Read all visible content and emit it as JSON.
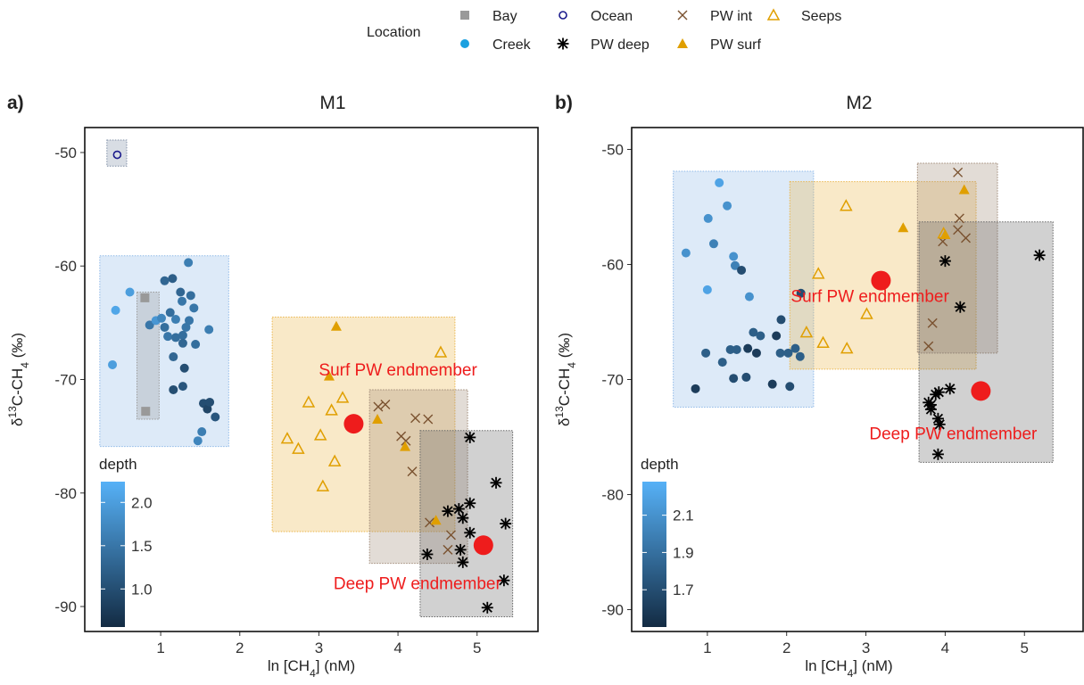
{
  "chart_data": [
    {
      "type": "scatter",
      "panel_label": "a)",
      "title": "M1",
      "legend_title": "Location",
      "x_label": [
        "ln [CH",
        "4",
        "] (nM)"
      ],
      "y_label": [
        "δ",
        "13",
        "C-CH",
        "4",
        " (‰)"
      ],
      "xlim": [
        0.04,
        5.77
      ],
      "ylim": [
        -92.2,
        -47.8
      ],
      "xticks": [
        1,
        2,
        3,
        4,
        5
      ],
      "yticks": [
        -90,
        -80,
        -70,
        -60,
        -50
      ],
      "series": [
        {
          "name": "Bay",
          "color": "#999999",
          "marker": "square",
          "x": [
            0.8,
            0.81
          ],
          "values": [
            -62.8,
            -72.8
          ]
        },
        {
          "name": "Creek",
          "color": "#1aa0e0",
          "marker": "circle",
          "x": [
            0.39,
            0.43,
            0.61,
            0.86,
            0.94,
            1.01,
            1.05,
            1.09,
            1.15,
            1.05,
            1.12,
            1.19,
            1.16,
            1.19,
            1.25,
            1.27,
            1.32,
            1.28,
            1.28,
            1.36,
            1.3,
            1.35,
            1.38,
            1.42,
            1.44,
            1.16,
            1.28,
            1.54,
            1.59,
            1.62,
            1.69,
            1.61,
            1.52,
            1.47
          ],
          "values": [
            -68.7,
            -63.9,
            -62.3,
            -65.2,
            -64.8,
            -64.6,
            -65.4,
            -66.2,
            -61.1,
            -61.3,
            -64.1,
            -64.7,
            -68.0,
            -66.3,
            -62.3,
            -63.1,
            -65.4,
            -66.1,
            -66.8,
            -64.8,
            -69.0,
            -59.7,
            -62.6,
            -63.7,
            -66.9,
            -70.9,
            -70.6,
            -72.1,
            -72.6,
            -72.0,
            -73.3,
            -65.6,
            -74.6,
            -75.4
          ],
          "depth": [
            2.0,
            2.1,
            2.0,
            1.5,
            1.9,
            1.7,
            1.4,
            1.5,
            1.2,
            1.3,
            1.4,
            1.6,
            1.3,
            1.4,
            1.3,
            1.5,
            1.5,
            1.4,
            1.3,
            1.5,
            1.0,
            1.6,
            1.4,
            1.5,
            1.4,
            1.0,
            1.1,
            1.0,
            0.9,
            1.0,
            1.1,
            1.6,
            1.6,
            1.7
          ]
        },
        {
          "name": "Ocean",
          "color": "#1a1a8c",
          "marker": "open-circle",
          "x": [
            0.45
          ],
          "values": [
            -50.2
          ]
        },
        {
          "name": "PW deep",
          "color": "#000000",
          "marker": "asterisk",
          "x": [
            4.91,
            5.24,
            4.63,
            4.77,
            4.91,
            4.82,
            4.91,
            5.36,
            4.37,
            4.79,
            4.82,
            5.34,
            5.13
          ],
          "values": [
            -75.1,
            -79.1,
            -81.6,
            -81.4,
            -80.9,
            -82.2,
            -83.5,
            -82.7,
            -85.4,
            -85.0,
            -86.1,
            -87.7,
            -90.1
          ]
        },
        {
          "name": "PW int",
          "color": "#7a5230",
          "marker": "cross",
          "x": [
            3.75,
            3.84,
            4.22,
            4.38,
            4.04,
            4.1,
            4.18,
            4.67,
            4.63,
            4.4
          ],
          "values": [
            -72.4,
            -72.2,
            -73.4,
            -73.5,
            -75.0,
            -75.4,
            -78.1,
            -83.7,
            -85.0,
            -82.6
          ]
        },
        {
          "name": "PW surf",
          "color": "#e09f00",
          "marker": "triangle",
          "x": [
            3.22,
            3.13,
            3.74,
            4.09,
            4.48
          ],
          "values": [
            -65.3,
            -69.7,
            -73.5,
            -75.9,
            -82.4
          ]
        },
        {
          "name": "Seeps",
          "color": "#e09f00",
          "marker": "open-triangle",
          "x": [
            4.54,
            2.87,
            3.3,
            3.16,
            2.6,
            3.02,
            2.74,
            3.2,
            3.05
          ],
          "values": [
            -67.6,
            -72.0,
            -71.6,
            -72.7,
            -75.2,
            -74.9,
            -76.1,
            -77.2,
            -79.4
          ]
        }
      ],
      "boxes": [
        {
          "location": "Ocean",
          "color": "#7f8fa6",
          "x": [
            0.32,
            0.57
          ],
          "y": [
            -51.2,
            -48.9
          ]
        },
        {
          "location": "Creek",
          "color": "#8db8e8",
          "x": [
            0.23,
            1.86
          ],
          "y": [
            -75.9,
            -59.1
          ]
        },
        {
          "location": "Bay",
          "color": "#999999",
          "x": [
            0.7,
            0.98
          ],
          "y": [
            -73.5,
            -62.3
          ]
        },
        {
          "location": "Seeps",
          "color": "#eab54a",
          "x": [
            2.41,
            4.72
          ],
          "y": [
            -83.4,
            -64.5
          ]
        },
        {
          "location": "PW int",
          "color": "#a08a78",
          "x": [
            3.64,
            4.88
          ],
          "y": [
            -86.2,
            -70.9
          ]
        },
        {
          "location": "PW deep",
          "color": "#666666",
          "x": [
            4.28,
            5.45
          ],
          "y": [
            -90.9,
            -74.5
          ]
        }
      ],
      "endmembers": [
        {
          "label": "Surf PW endmember",
          "color": "#ee1c1c",
          "x": 3.44,
          "y": -73.9
        },
        {
          "label": "Deep PW endmember",
          "color": "#ee1c1c",
          "x": 5.08,
          "y": -84.6
        }
      ],
      "colorbar": {
        "title": "depth",
        "colors": [
          "#132b43",
          "#56b1f7"
        ],
        "lim": [
          0.56,
          2.24
        ],
        "ticks": [
          {
            "value": 2,
            "label": "2.0"
          },
          1.5,
          {
            "value": 1,
            "label": "1.0"
          }
        ]
      }
    },
    {
      "type": "scatter",
      "panel_label": "b)",
      "title": "M2",
      "x_label": [
        "ln [CH",
        "4",
        "] (nM)"
      ],
      "y_label": [
        "δ",
        "13",
        "C-CH",
        "4",
        " (‰)"
      ],
      "xlim": [
        0.045,
        5.74
      ],
      "ylim": [
        -91.9,
        -48.1
      ],
      "xticks": [
        1,
        2,
        3,
        4,
        5
      ],
      "yticks": [
        -90,
        -80,
        -70,
        -60,
        -50
      ],
      "series": [
        {
          "name": "Bay",
          "color": "#999999",
          "marker": "square",
          "x": [],
          "values": []
        },
        {
          "name": "Creek",
          "color": "#1aa0e0",
          "marker": "circle",
          "x": [
            0.73,
            1.15,
            1.01,
            1.25,
            1.08,
            1.33,
            1.35,
            1.0,
            1.53,
            1.43,
            0.98,
            0.85,
            1.19,
            1.29,
            1.37,
            1.33,
            1.49,
            1.51,
            1.62,
            1.58,
            1.67,
            1.87,
            1.82,
            2.04,
            1.92,
            2.02,
            2.11,
            2.17,
            2.18,
            1.93
          ],
          "values": [
            -59.0,
            -52.9,
            -56.0,
            -54.9,
            -58.2,
            -59.3,
            -60.1,
            -62.2,
            -62.8,
            -60.5,
            -67.7,
            -70.8,
            -68.5,
            -67.4,
            -67.4,
            -69.9,
            -69.8,
            -67.3,
            -67.7,
            -65.9,
            -66.2,
            -66.2,
            -70.4,
            -70.6,
            -67.7,
            -67.7,
            -67.3,
            -68.0,
            -62.5,
            -64.8
          ],
          "depth": [
            2.1,
            2.2,
            2.1,
            2.1,
            2.0,
            2.1,
            2.0,
            2.2,
            2.1,
            1.7,
            1.8,
            1.6,
            1.8,
            1.8,
            1.8,
            1.7,
            1.7,
            1.6,
            1.6,
            1.8,
            1.8,
            1.6,
            1.6,
            1.7,
            1.8,
            1.8,
            1.8,
            1.8,
            1.7,
            1.7
          ]
        },
        {
          "name": "Ocean",
          "color": "#1a1a8c",
          "marker": "open-circle",
          "x": [],
          "values": []
        },
        {
          "name": "PW deep",
          "color": "#000000",
          "marker": "asterisk",
          "x": [
            4.0,
            4.19,
            5.19,
            4.06,
            3.92,
            3.88,
            3.79,
            3.82,
            3.82,
            3.91,
            3.93,
            3.91
          ],
          "values": [
            -59.7,
            -63.7,
            -59.2,
            -70.8,
            -71.1,
            -71.3,
            -72.0,
            -72.6,
            -72.2,
            -73.4,
            -73.9,
            -76.5
          ]
        },
        {
          "name": "PW int",
          "color": "#7a5230",
          "marker": "cross",
          "x": [
            4.16,
            4.18,
            4.16,
            4.26,
            3.97,
            3.84,
            3.79
          ],
          "values": [
            -52.0,
            -56.0,
            -57.0,
            -57.7,
            -58.0,
            -65.1,
            -67.1
          ]
        },
        {
          "name": "PW surf",
          "color": "#e09f00",
          "marker": "triangle",
          "x": [
            4.24,
            3.47,
            4.0
          ],
          "values": [
            -53.5,
            -56.8,
            -57.4
          ]
        },
        {
          "name": "Seeps",
          "color": "#e09f00",
          "marker": "open-triangle",
          "x": [
            2.75,
            2.4,
            3.01,
            2.25,
            2.46,
            2.76,
            3.98
          ],
          "values": [
            -54.9,
            -60.8,
            -64.3,
            -65.9,
            -66.8,
            -67.3,
            -57.3
          ]
        }
      ],
      "boxes": [
        {
          "location": "Creek",
          "color": "#8db8e8",
          "x": [
            0.57,
            2.34
          ],
          "y": [
            -72.4,
            -51.9
          ]
        },
        {
          "location": "Seeps",
          "color": "#eab54a",
          "x": [
            2.04,
            4.39
          ],
          "y": [
            -69.1,
            -52.8
          ]
        },
        {
          "location": "PW int",
          "color": "#a08a78",
          "x": [
            3.65,
            4.66
          ],
          "y": [
            -67.7,
            -51.2
          ]
        },
        {
          "location": "PW deep",
          "color": "#666666",
          "x": [
            3.67,
            5.36
          ],
          "y": [
            -77.2,
            -56.3
          ]
        }
      ],
      "endmembers": [
        {
          "label": "Surf PW endmember",
          "color": "#ee1c1c",
          "x": 3.19,
          "y": -61.4
        },
        {
          "label": "Deep PW endmember",
          "color": "#ee1c1c",
          "x": 4.45,
          "y": -71.0
        }
      ],
      "colorbar": {
        "title": "depth",
        "colors": [
          "#132b43",
          "#56b1f7"
        ],
        "lim": [
          1.5,
          2.28
        ],
        "ticks": [
          2.1,
          1.9,
          1.7
        ]
      }
    }
  ]
}
